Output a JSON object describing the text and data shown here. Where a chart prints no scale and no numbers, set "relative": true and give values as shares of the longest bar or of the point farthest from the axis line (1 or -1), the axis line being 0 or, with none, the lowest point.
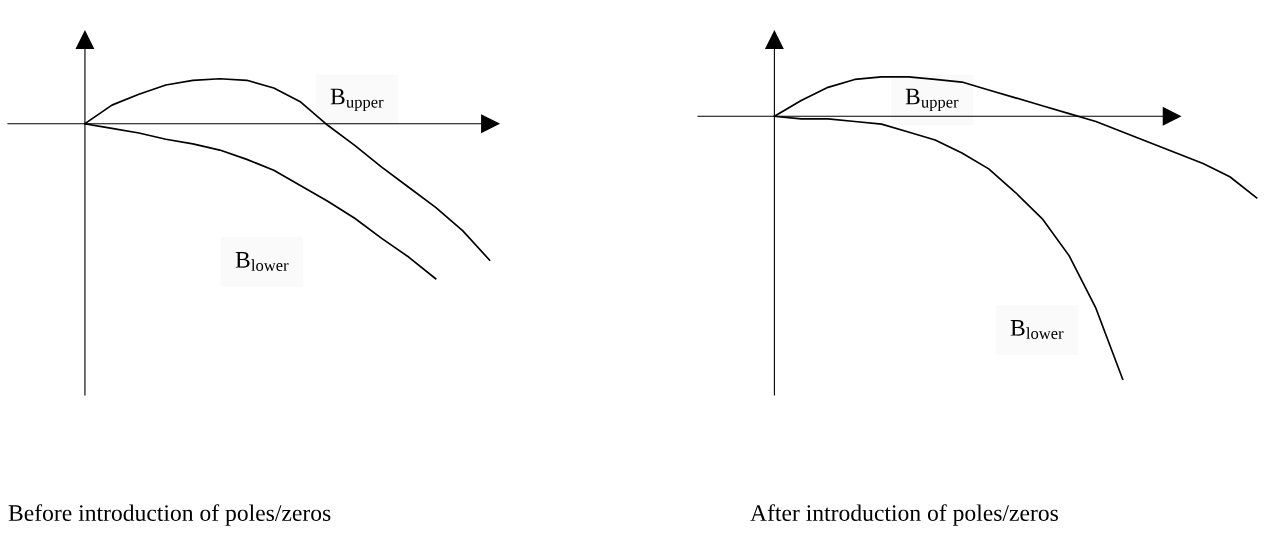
{
  "chart_data": [
    {
      "type": "line",
      "relative": true,
      "title": "Before introduction of poles/zeros",
      "categories": [
        null,
        null,
        null,
        null,
        null,
        null,
        null,
        null,
        null,
        null,
        null,
        null,
        null,
        null,
        null,
        null
      ],
      "grid": false,
      "legend": false,
      "marker": "none",
      "line_style": "solid",
      "series": [
        {
          "name": "B$_{upper}$",
          "color": "#000000",
          "values": [
            0,
            0.12,
            0.19,
            0.25,
            0.28,
            0.29,
            0.28,
            0.23,
            0.14,
            -0.01,
            -0.14,
            -0.28,
            -0.41,
            -0.54,
            -0.69,
            -0.88
          ]
        },
        {
          "name": "B$_{lower}$",
          "color": "#000000",
          "values": [
            0,
            -0.03,
            -0.06,
            -0.1,
            -0.13,
            -0.17,
            -0.23,
            -0.3,
            -0.4,
            -0.5,
            -0.61,
            -0.74,
            -0.86,
            -1,
            null,
            null
          ]
        }
      ]
    },
    {
      "type": "line",
      "relative": true,
      "title": "After introduction of poles/zeros",
      "categories": [
        null,
        null,
        null,
        null,
        null,
        null,
        null,
        null,
        null,
        null,
        null,
        null,
        null,
        null,
        null,
        null,
        null,
        null,
        null
      ],
      "grid": false,
      "legend": false,
      "marker": "none",
      "line_style": "solid",
      "series": [
        {
          "name": "B$_{upper}$",
          "color": "#000000",
          "values": [
            0,
            0.06,
            0.11,
            0.14,
            0.15,
            0.15,
            0.14,
            0.13,
            0.1,
            0.07,
            0.04,
            0.01,
            -0.02,
            -0.06,
            -0.1,
            -0.14,
            -0.18,
            -0.23,
            -0.31
          ]
        },
        {
          "name": "B$_{lower}$",
          "color": "#000000",
          "values": [
            0,
            -0.01,
            -0.01,
            -0.02,
            -0.03,
            -0.06,
            -0.09,
            -0.14,
            -0.2,
            -0.29,
            -0.39,
            -0.53,
            -0.73,
            -1,
            null,
            null,
            null,
            null,
            null
          ]
        }
      ]
    }
  ]
}
